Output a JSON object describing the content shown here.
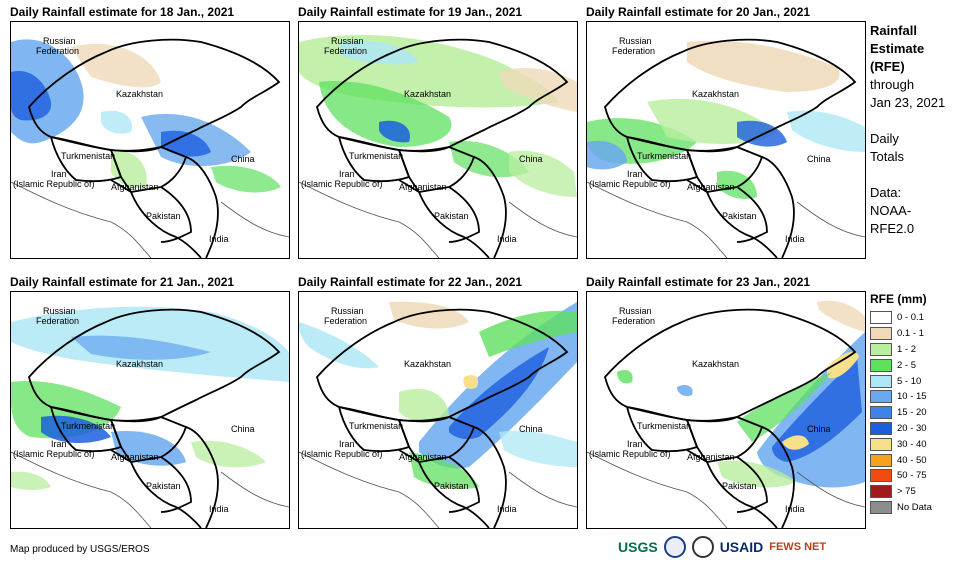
{
  "panels": [
    {
      "title": "Daily Rainfall estimate for 18 Jan., 2021"
    },
    {
      "title": "Daily Rainfall estimate for 19 Jan., 2021"
    },
    {
      "title": "Daily Rainfall estimate for 20 Jan., 2021"
    },
    {
      "title": "Daily Rainfall estimate for 21 Jan., 2021"
    },
    {
      "title": "Daily Rainfall estimate for 22 Jan., 2021"
    },
    {
      "title": "Daily Rainfall estimate for 23 Jan., 2021"
    }
  ],
  "map_labels": {
    "russia_1": "Russian",
    "russia_2": "Federation",
    "kazakhstan": "Kazakhstan",
    "turkmenistan": "Turkmenistan",
    "china": "China",
    "iran_1": "Iran",
    "iran_2": "(Islamic Republic of)",
    "afghanistan": "Afghanistan",
    "pakistan": "Pakistan",
    "india": "India"
  },
  "side": {
    "h1": "Rainfall",
    "h2": "Estimate",
    "h3": "(RFE)",
    "t1": "through",
    "t2": "Jan 23, 2021",
    "t3": "Daily",
    "t4": "Totals",
    "t5": "Data:",
    "t6": "NOAA-",
    "t7": "RFE2.0"
  },
  "legend": {
    "title": "RFE (mm)",
    "items": [
      {
        "label": "0 - 0.1",
        "color": "#ffffff"
      },
      {
        "label": "0.1 - 1",
        "color": "#efd9b8"
      },
      {
        "label": "1 - 2",
        "color": "#b8ee9e"
      },
      {
        "label": "2 - 5",
        "color": "#5fe05f"
      },
      {
        "label": "5 - 10",
        "color": "#aee8f6"
      },
      {
        "label": "10 - 15",
        "color": "#6aa9ef"
      },
      {
        "label": "15 - 20",
        "color": "#3f83ea"
      },
      {
        "label": "20 - 30",
        "color": "#1c5fde"
      },
      {
        "label": "30 - 40",
        "color": "#f7e08a"
      },
      {
        "label": "40 - 50",
        "color": "#f7a21b"
      },
      {
        "label": "50 - 75",
        "color": "#f24b12"
      },
      {
        "label": "> 75",
        "color": "#a0191c"
      },
      {
        "label": "No Data",
        "color": "#8c8c8c"
      }
    ]
  },
  "footer": "Map produced by USGS/EROS",
  "logos": {
    "usgs": "USGS",
    "usaid": "USAID",
    "fewsnet": "FEWS NET"
  }
}
